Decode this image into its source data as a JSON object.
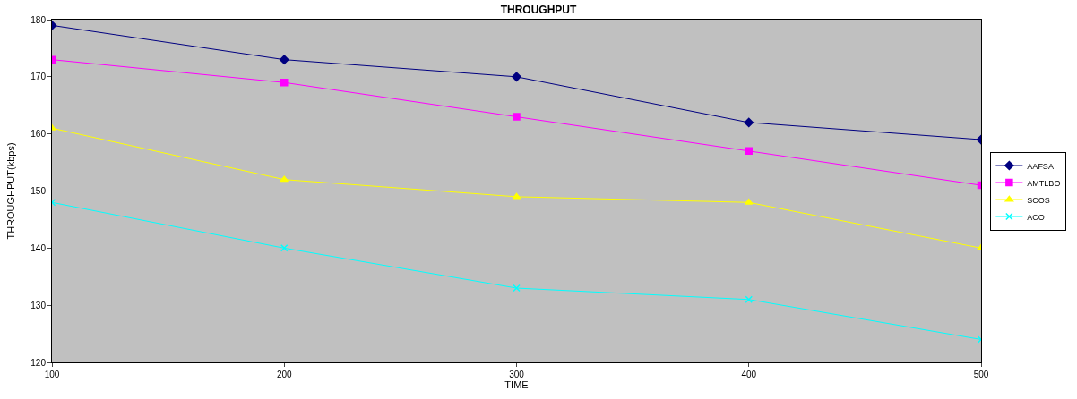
{
  "chart_data": {
    "type": "line",
    "title": "THROUGHPUT",
    "xlabel": "TIME",
    "ylabel": "THROUGHPUT(kbps)",
    "x": [
      100,
      200,
      300,
      400,
      500
    ],
    "series": [
      {
        "name": "AAFSA",
        "color": "#000080",
        "marker": "diamond",
        "values": [
          179,
          173,
          170,
          162,
          159
        ]
      },
      {
        "name": "AMTLBO",
        "color": "#ff00ff",
        "marker": "square",
        "values": [
          173,
          169,
          163,
          157,
          151
        ]
      },
      {
        "name": "SCOS",
        "color": "#ffff00",
        "marker": "triangle",
        "values": [
          161,
          152,
          149,
          148,
          140
        ]
      },
      {
        "name": "ACO",
        "color": "#00ffff",
        "marker": "cross",
        "values": [
          148,
          140,
          133,
          131,
          124
        ]
      }
    ],
    "xlim": [
      100,
      500
    ],
    "xticks": [
      100,
      200,
      300,
      400,
      500
    ],
    "ylim": [
      120,
      180
    ],
    "yticks": [
      120,
      130,
      140,
      150,
      160,
      170,
      180
    ],
    "grid": false,
    "legend": "right",
    "line_style": "solid"
  }
}
